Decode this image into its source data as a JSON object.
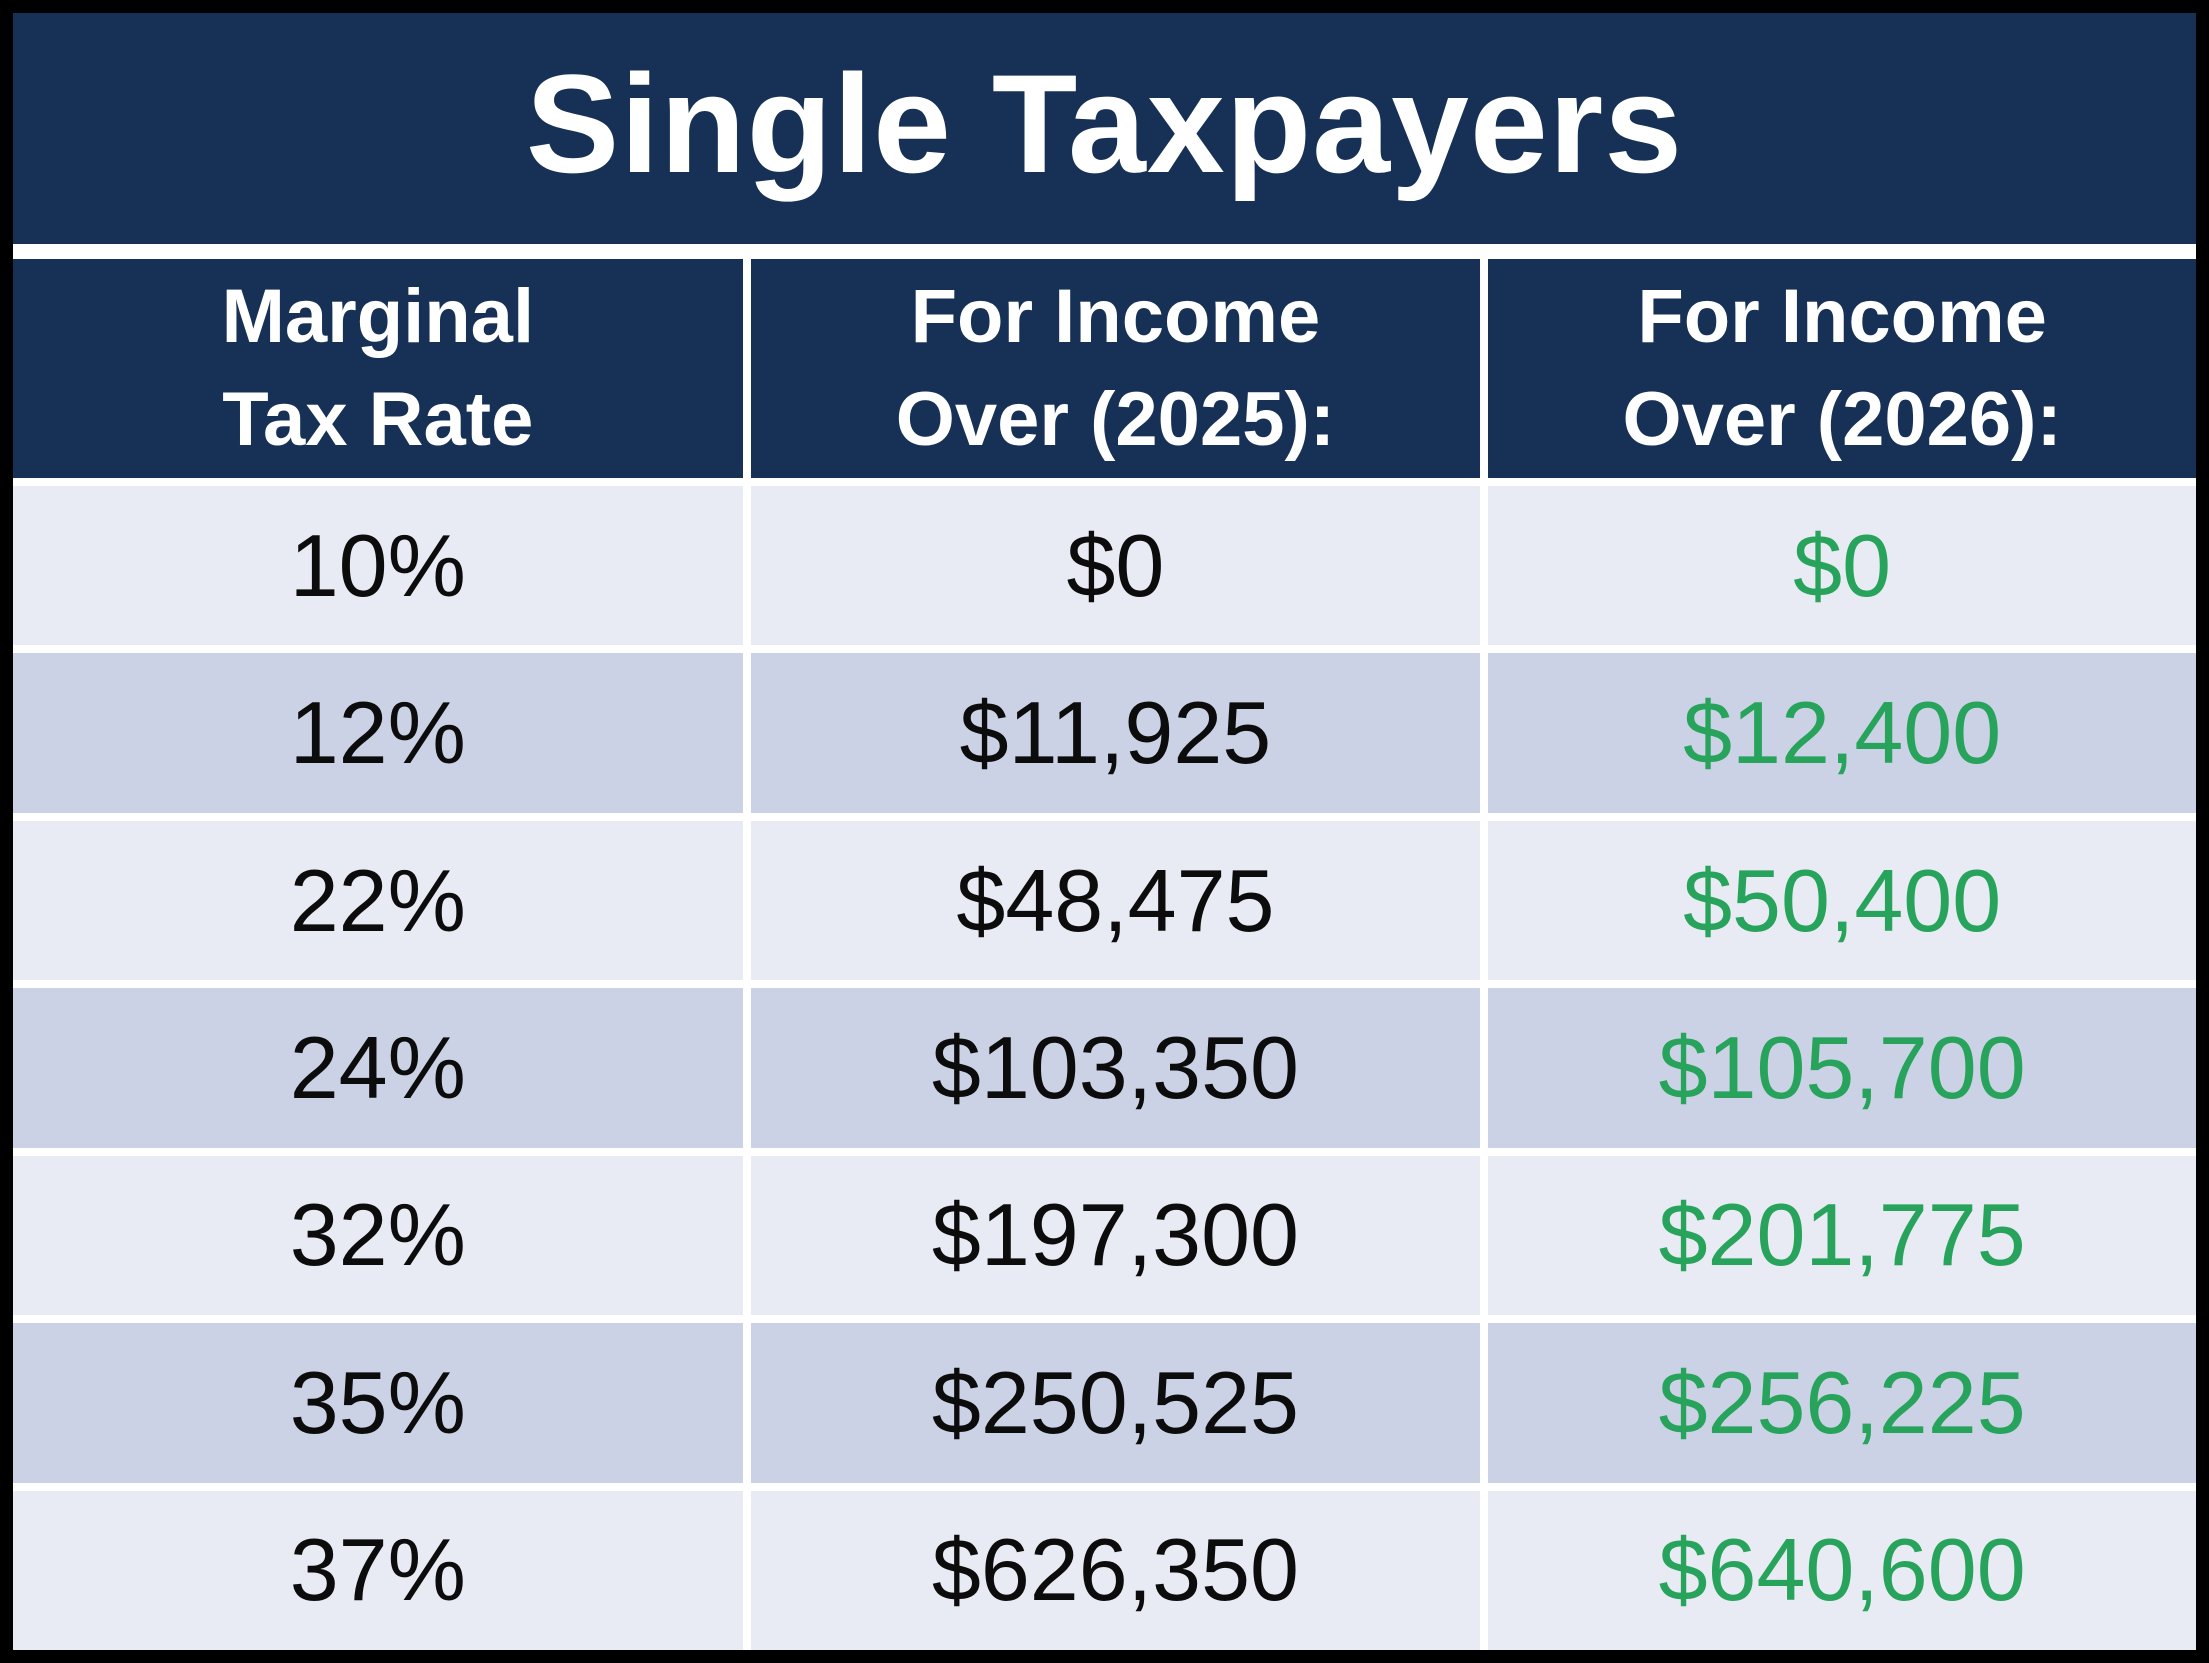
{
  "chart_data": {
    "type": "table",
    "title": "Single Taxpayers",
    "columns": [
      "Marginal Tax Rate",
      "For Income Over (2025):",
      "For Income Over (2026):"
    ],
    "header_lines": [
      [
        "Marginal",
        "Tax Rate"
      ],
      [
        "For Income",
        "Over (2025):"
      ],
      [
        "For Income",
        "Over (2026):"
      ]
    ],
    "rows": [
      [
        "10%",
        "$0",
        "$0"
      ],
      [
        "12%",
        "$11,925",
        "$12,400"
      ],
      [
        "22%",
        "$48,475",
        "$50,400"
      ],
      [
        "24%",
        "$103,350",
        "$105,700"
      ],
      [
        "32%",
        "$197,300",
        "$201,775"
      ],
      [
        "35%",
        "$250,525",
        "$256,225"
      ],
      [
        "37%",
        "$626,350",
        "$640,600"
      ]
    ]
  },
  "colors": {
    "header_navy": "#173156",
    "row_light": "#e8eaf4",
    "row_dark": "#ccd2e6",
    "value_2026_green": "#27a35c",
    "gridline_white": "#ffffff",
    "outer_border_black": "#000000",
    "header_text": "#ffffff",
    "body_text": "#0c0c0c"
  }
}
